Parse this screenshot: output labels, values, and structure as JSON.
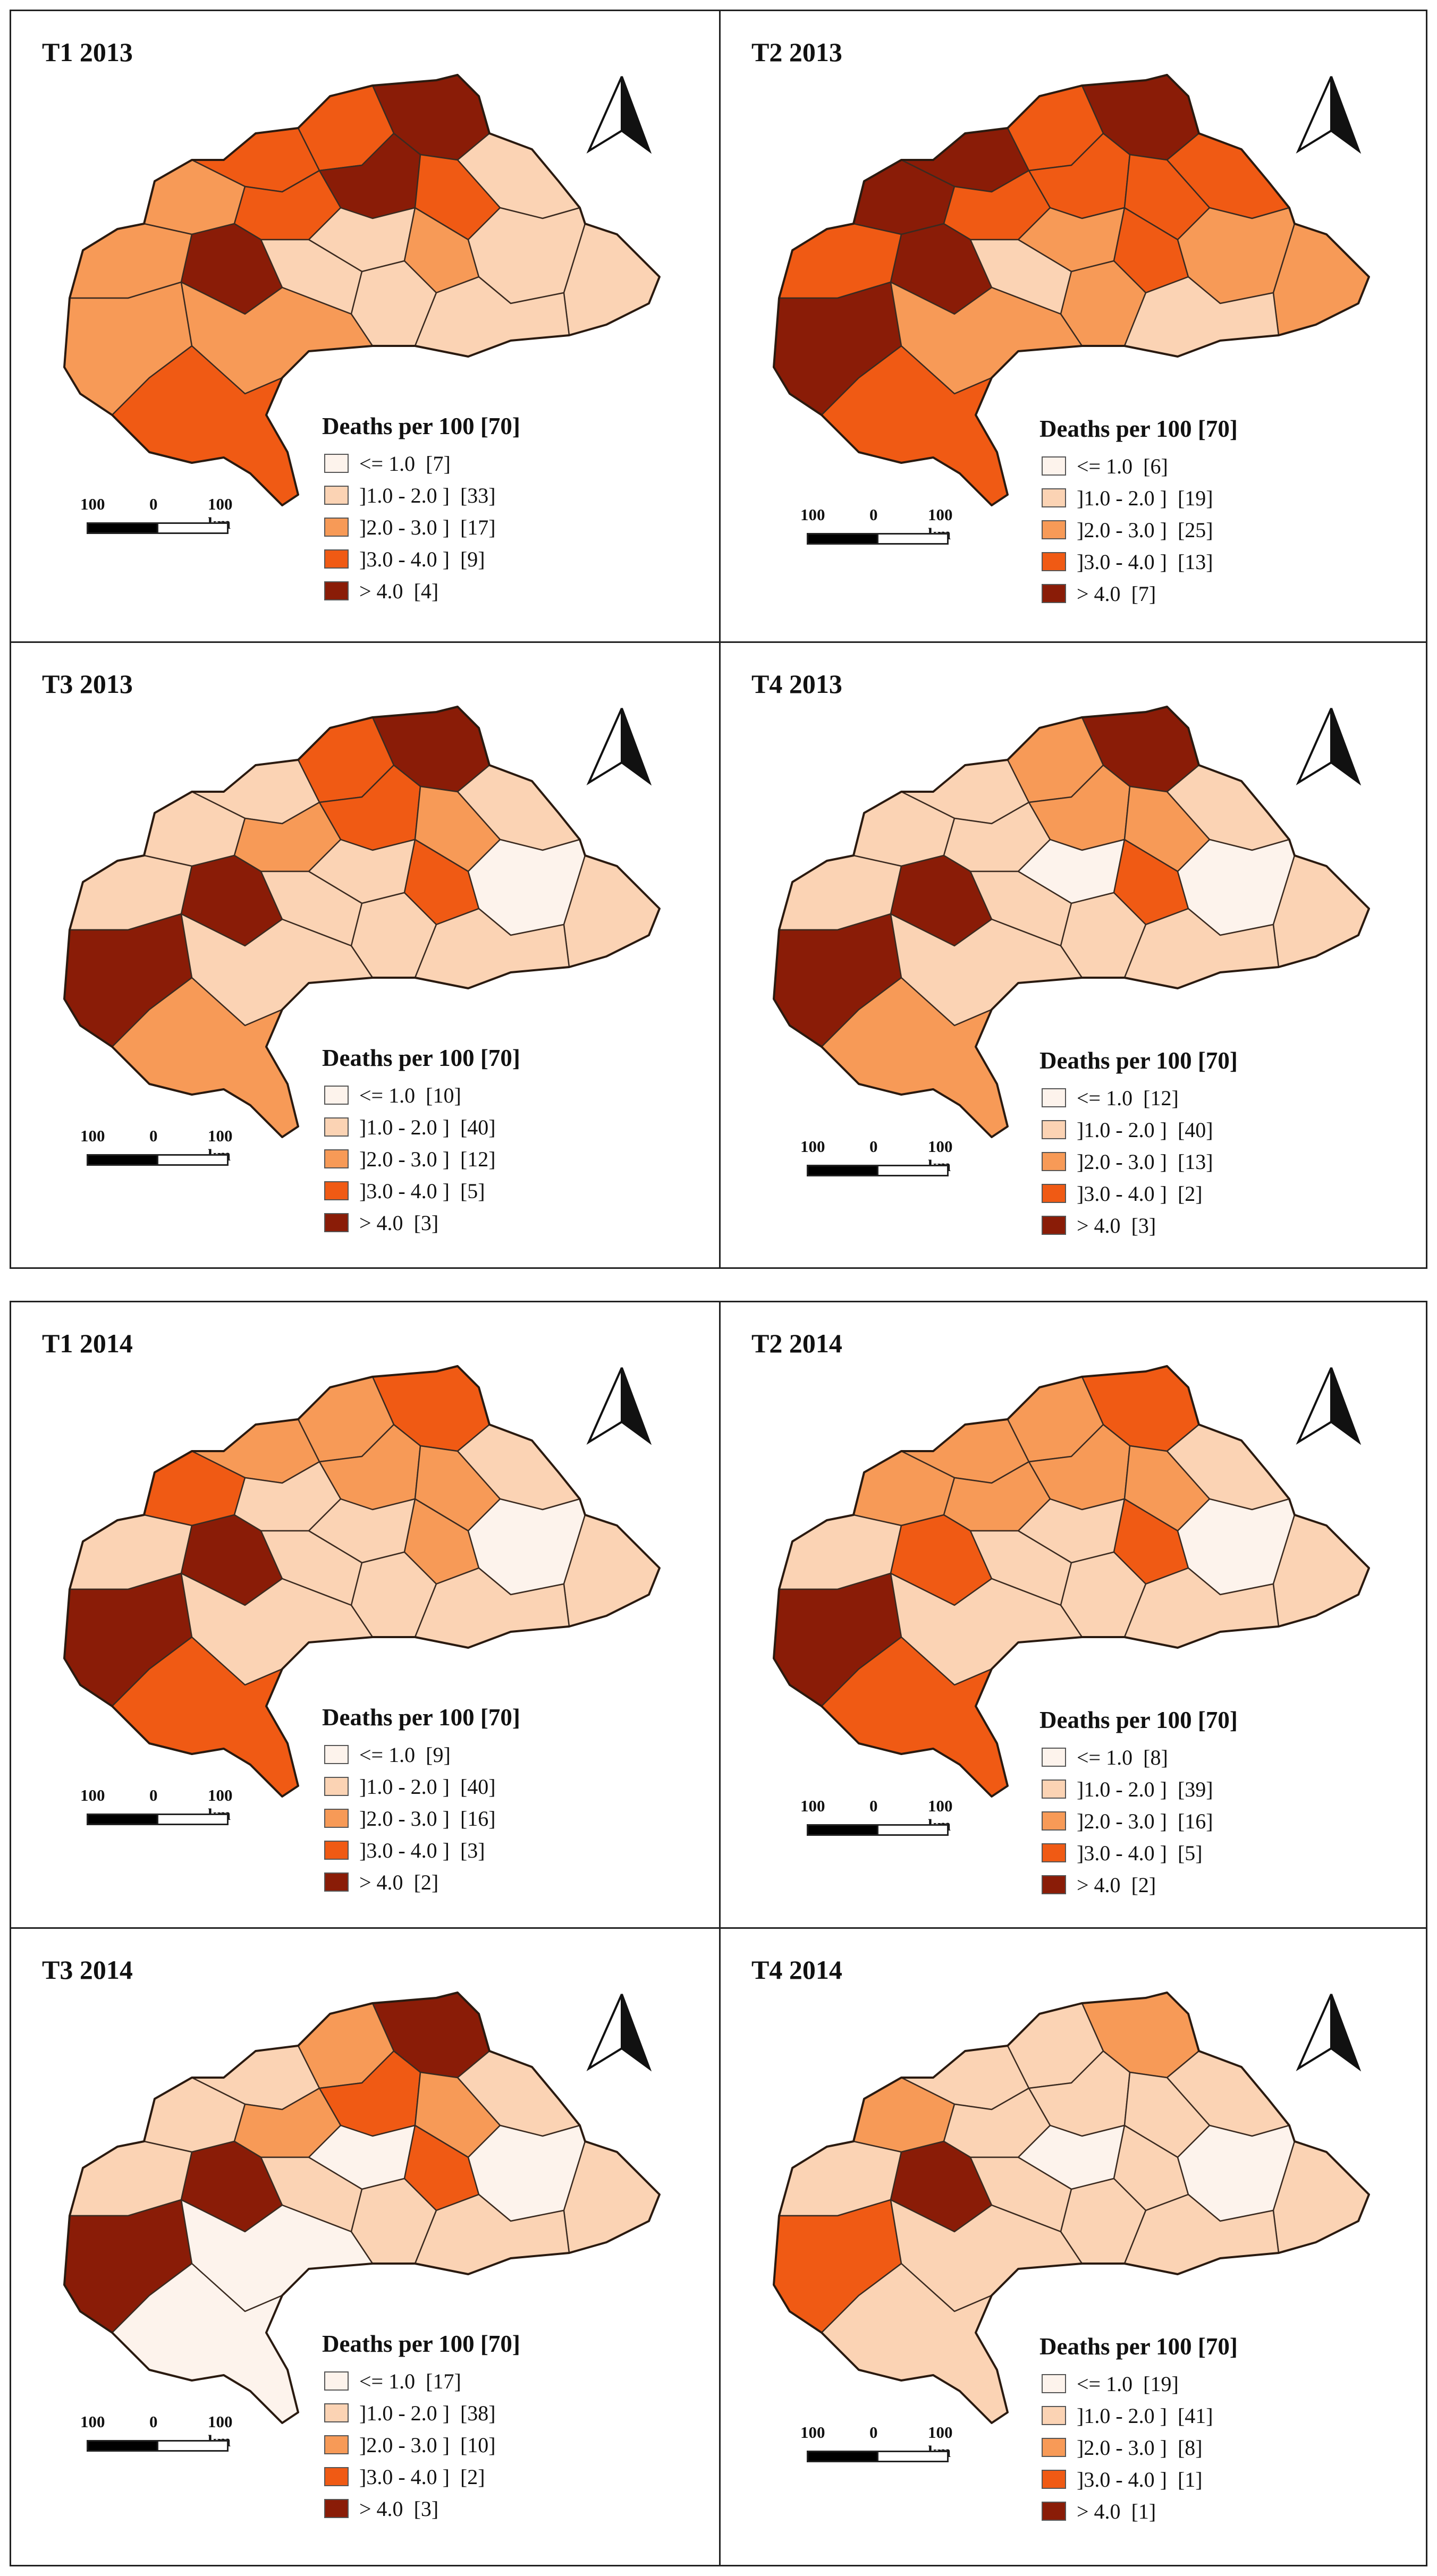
{
  "legend_title": "Deaths per 100 [70]",
  "classes": [
    {
      "label": "<= 1.0",
      "color": "#fdf3ec"
    },
    {
      "label": "]1.0 - 2.0 ]",
      "color": "#fbd3b4"
    },
    {
      "label": "]2.0 - 3.0 ]",
      "color": "#f79a57"
    },
    {
      "label": "]3.0 - 4.0 ]",
      "color": "#f05a14"
    },
    {
      "label": "> 4.0",
      "color": "#8a1c07"
    }
  ],
  "scale": {
    "left": "100",
    "mid": "0",
    "right": "100 km"
  },
  "panels": [
    {
      "title": "T1 2013",
      "counts": [
        "[7]",
        "[33]",
        "[17]",
        "[9]",
        "[4]"
      ],
      "class_counts": [
        7,
        33,
        17,
        9,
        4
      ]
    },
    {
      "title": "T2 2013",
      "counts": [
        "[6]",
        "[19]",
        "[25]",
        "[13]",
        "[7]"
      ],
      "class_counts": [
        6,
        19,
        25,
        13,
        7
      ]
    },
    {
      "title": "T3 2013",
      "counts": [
        "[10]",
        "[40]",
        "[12]",
        "[5]",
        "[3]"
      ],
      "class_counts": [
        10,
        40,
        12,
        5,
        3
      ]
    },
    {
      "title": "T4 2013",
      "counts": [
        "[12]",
        "[40]",
        "[13]",
        "[2]",
        "[3]"
      ],
      "class_counts": [
        12,
        40,
        13,
        2,
        3
      ]
    },
    {
      "title": "T1 2014",
      "counts": [
        "[9]",
        "[40]",
        "[16]",
        "[3]",
        "[2]"
      ],
      "class_counts": [
        9,
        40,
        16,
        3,
        2
      ]
    },
    {
      "title": "T2 2014",
      "counts": [
        "[8]",
        "[39]",
        "[16]",
        "[5]",
        "[2]"
      ],
      "class_counts": [
        8,
        39,
        16,
        5,
        2
      ]
    },
    {
      "title": "T3 2014",
      "counts": [
        "[17]",
        "[38]",
        "[10]",
        "[2]",
        "[3]"
      ],
      "class_counts": [
        17,
        38,
        10,
        2,
        3
      ]
    },
    {
      "title": "T4 2014",
      "counts": [
        "[19]",
        "[41]",
        "[8]",
        "[1]",
        "[1]"
      ],
      "class_counts": [
        19,
        41,
        8,
        1,
        1
      ]
    }
  ]
}
